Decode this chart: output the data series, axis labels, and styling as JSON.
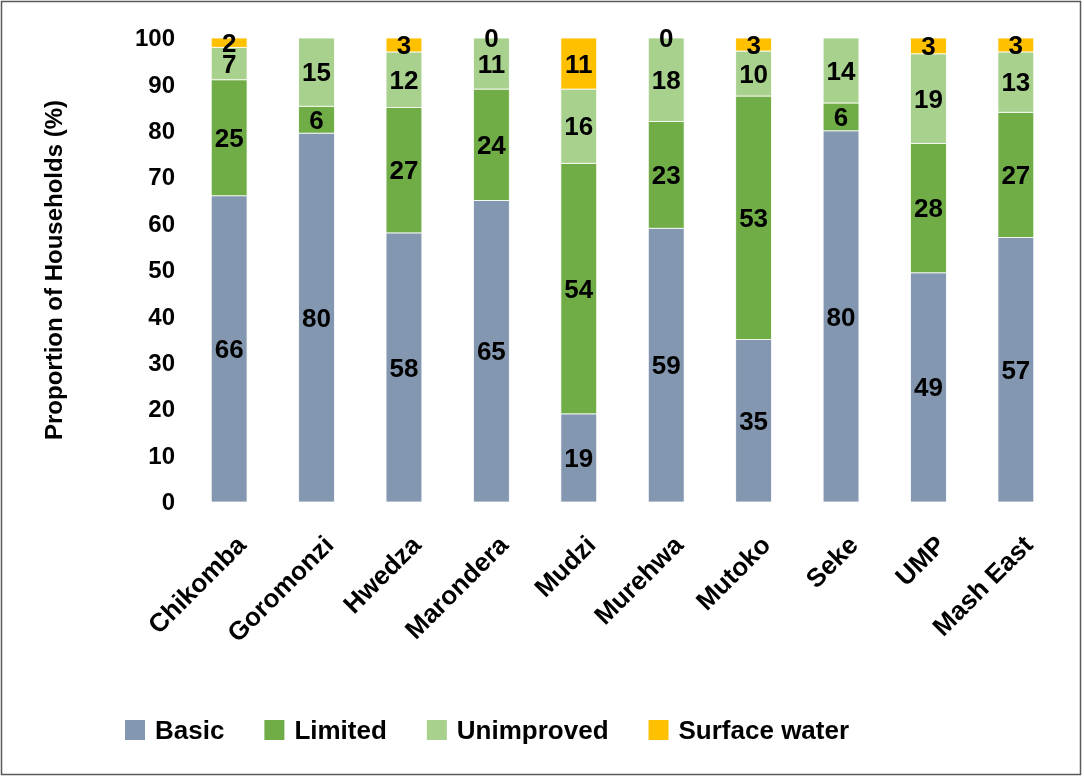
{
  "chart_data": {
    "type": "bar",
    "stacked": true,
    "ylabel": "Proportion of Households (%)",
    "categories": [
      "Chikomba",
      "Goromonzi",
      "Hwedza",
      "Marondera",
      "Mudzi",
      "Murehwa",
      "Mutoko",
      "Seke",
      "UMP",
      "Mash East"
    ],
    "ylim": [
      0,
      100
    ],
    "yticks": [
      0,
      10,
      20,
      30,
      40,
      50,
      60,
      70,
      80,
      90,
      100
    ],
    "grid": false,
    "legend": "bottom",
    "series": [
      {
        "name": "Basic",
        "color": "#8497b0",
        "values": [
          66,
          79.5,
          58,
          65,
          19,
          59,
          35,
          80,
          49.4,
          57
        ],
        "value_labels": [
          "66",
          "80",
          "58",
          "65",
          "19",
          "59",
          "35",
          "80",
          "49",
          "57"
        ]
      },
      {
        "name": "Limited",
        "color": "#70ad47",
        "values": [
          25,
          5.8,
          27,
          24,
          54,
          23,
          52.5,
          6,
          27.9,
          27
        ],
        "value_labels": [
          "25",
          "6",
          "27",
          "24",
          "54",
          "23",
          "53",
          "6",
          "28",
          "27"
        ]
      },
      {
        "name": "Unimproved",
        "color": "#a9d18e",
        "values": [
          7,
          14.7,
          12,
          11,
          16,
          18,
          9.7,
          14,
          19.3,
          13
        ],
        "value_labels": [
          "7",
          "15",
          "12",
          "11",
          "16",
          "18",
          "10",
          "14",
          "19",
          "13"
        ]
      },
      {
        "name": "Surface water",
        "color": "#ffc000",
        "values": [
          2,
          0,
          3,
          0,
          11,
          0,
          2.8,
          0,
          3.4,
          3
        ],
        "value_labels": [
          "2",
          null,
          "3",
          "0",
          "11",
          "0",
          "3",
          null,
          "3",
          "3"
        ]
      }
    ]
  }
}
